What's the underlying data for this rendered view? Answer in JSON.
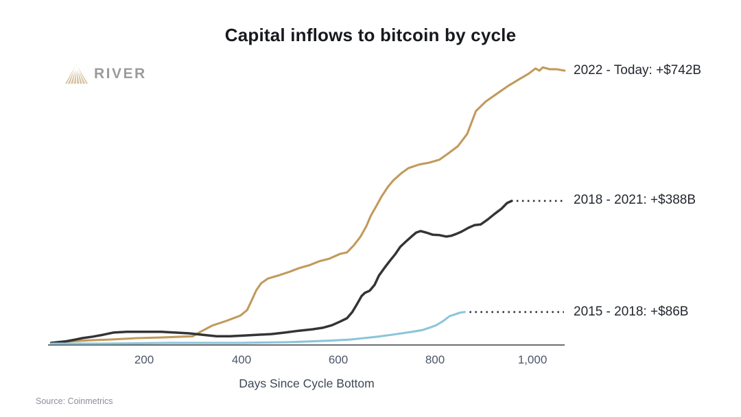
{
  "header": {
    "title": "Capital inflows to bitcoin by cycle"
  },
  "logo": {
    "brand": "RIVER",
    "icon": "river-mountain-icon",
    "icon_color": "#D7C2A0",
    "text_color": "#9b9b9d"
  },
  "source": {
    "text": "Source: Coinmetrics"
  },
  "chart_data": {
    "type": "line",
    "title": "Capital inflows to bitcoin by cycle",
    "xlabel": "Days Since Cycle Bottom",
    "ylabel": "",
    "y_unit": "USD billions",
    "xlim": [
      0,
      1100
    ],
    "ylim": [
      0,
      760
    ],
    "grid": false,
    "legend_position": "right-end-labels",
    "x_ticks": [
      {
        "day": 200,
        "label": "200"
      },
      {
        "day": 400,
        "label": "400"
      },
      {
        "day": 600,
        "label": "600"
      },
      {
        "day": 800,
        "label": "800"
      },
      {
        "day": 1000,
        "label": "1,000"
      }
    ],
    "series": [
      {
        "name": "2022 - Today",
        "end_label": "2022 - Today: +$742B",
        "final_value_billions": 742,
        "label_value": 742,
        "color": "#C19A5B",
        "dotted_connector": false,
        "points": [
          [
            8,
            2
          ],
          [
            45,
            6
          ],
          [
            85,
            9
          ],
          [
            130,
            11
          ],
          [
            185,
            15
          ],
          [
            240,
            17
          ],
          [
            300,
            20
          ],
          [
            313,
            30
          ],
          [
            340,
            49
          ],
          [
            370,
            62
          ],
          [
            398,
            76
          ],
          [
            412,
            91
          ],
          [
            422,
            119
          ],
          [
            431,
            145
          ],
          [
            441,
            164
          ],
          [
            455,
            177
          ],
          [
            476,
            185
          ],
          [
            497,
            194
          ],
          [
            519,
            205
          ],
          [
            540,
            213
          ],
          [
            561,
            224
          ],
          [
            582,
            231
          ],
          [
            604,
            244
          ],
          [
            618,
            248
          ],
          [
            632,
            267
          ],
          [
            646,
            291
          ],
          [
            658,
            319
          ],
          [
            667,
            347
          ],
          [
            679,
            375
          ],
          [
            689,
            399
          ],
          [
            703,
            427
          ],
          [
            714,
            444
          ],
          [
            731,
            464
          ],
          [
            745,
            477
          ],
          [
            767,
            487
          ],
          [
            788,
            492
          ],
          [
            809,
            500
          ],
          [
            830,
            520
          ],
          [
            847,
            537
          ],
          [
            866,
            570
          ],
          [
            884,
            632
          ],
          [
            904,
            658
          ],
          [
            927,
            679
          ],
          [
            951,
            701
          ],
          [
            975,
            720
          ],
          [
            993,
            734
          ],
          [
            1007,
            748
          ],
          [
            1015,
            742
          ],
          [
            1022,
            751
          ],
          [
            1036,
            746
          ],
          [
            1050,
            746
          ],
          [
            1067,
            742
          ]
        ]
      },
      {
        "name": "2018 - 2021",
        "end_label": "2018 - 2021: +$388B",
        "final_value_billions": 388,
        "label_value": 388,
        "color": "#343434",
        "dotted_connector": true,
        "points": [
          [
            8,
            2
          ],
          [
            37,
            6
          ],
          [
            58,
            11
          ],
          [
            72,
            15
          ],
          [
            94,
            19
          ],
          [
            115,
            24
          ],
          [
            136,
            30
          ],
          [
            164,
            32
          ],
          [
            200,
            32
          ],
          [
            235,
            32
          ],
          [
            264,
            30
          ],
          [
            292,
            28
          ],
          [
            320,
            24
          ],
          [
            349,
            20
          ],
          [
            377,
            20
          ],
          [
            405,
            22
          ],
          [
            434,
            24
          ],
          [
            462,
            26
          ],
          [
            490,
            30
          ],
          [
            519,
            35
          ],
          [
            547,
            39
          ],
          [
            568,
            43
          ],
          [
            587,
            50
          ],
          [
            604,
            60
          ],
          [
            618,
            69
          ],
          [
            629,
            86
          ],
          [
            639,
            108
          ],
          [
            648,
            129
          ],
          [
            655,
            138
          ],
          [
            665,
            144
          ],
          [
            675,
            160
          ],
          [
            684,
            185
          ],
          [
            696,
            207
          ],
          [
            707,
            226
          ],
          [
            717,
            242
          ],
          [
            728,
            263
          ],
          [
            740,
            278
          ],
          [
            751,
            291
          ],
          [
            761,
            302
          ],
          [
            770,
            306
          ],
          [
            781,
            302
          ],
          [
            795,
            296
          ],
          [
            809,
            295
          ],
          [
            823,
            291
          ],
          [
            833,
            293
          ],
          [
            843,
            298
          ],
          [
            854,
            304
          ],
          [
            869,
            315
          ],
          [
            881,
            322
          ],
          [
            894,
            324
          ],
          [
            908,
            337
          ],
          [
            922,
            352
          ],
          [
            937,
            367
          ],
          [
            948,
            382
          ],
          [
            958,
            388
          ]
        ]
      },
      {
        "name": "2015 - 2018",
        "end_label": "2015 - 2018: +$86B",
        "final_value_billions": 86,
        "label_value": 86,
        "color": "#8CC5D9",
        "dotted_connector": true,
        "points": [
          [
            8,
            0
          ],
          [
            115,
            0
          ],
          [
            256,
            2
          ],
          [
            398,
            2
          ],
          [
            497,
            4
          ],
          [
            540,
            6
          ],
          [
            582,
            8
          ],
          [
            625,
            11
          ],
          [
            653,
            15
          ],
          [
            682,
            19
          ],
          [
            710,
            24
          ],
          [
            731,
            28
          ],
          [
            752,
            32
          ],
          [
            774,
            37
          ],
          [
            788,
            43
          ],
          [
            802,
            50
          ],
          [
            816,
            61
          ],
          [
            830,
            75
          ],
          [
            842,
            80
          ],
          [
            851,
            84
          ],
          [
            861,
            86
          ]
        ]
      }
    ]
  }
}
